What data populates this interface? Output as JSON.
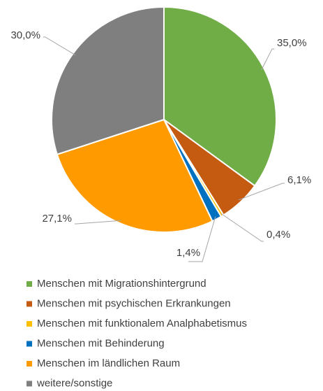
{
  "chart_data": {
    "type": "pie",
    "categories": [
      "Menschen mit Migrationshintergrund",
      "Menschen mit psychischen Erkrankungen",
      "Menschen mit funktionalem Analphabetismus",
      "Menschen mit Behinderung",
      "Menschen im ländlichen Raum",
      "weitere/sonstige"
    ],
    "values": [
      35.0,
      6.1,
      0.4,
      1.4,
      27.1,
      30.0
    ],
    "value_labels": [
      "35,0%",
      "6,1%",
      "0,4%",
      "1,4%",
      "27,1%",
      "30,0%"
    ],
    "colors": [
      "#70ad47",
      "#c55a11",
      "#ffc000",
      "#0070c0",
      "#ff9a00",
      "#7f7f7f"
    ],
    "legend": "bottom"
  }
}
